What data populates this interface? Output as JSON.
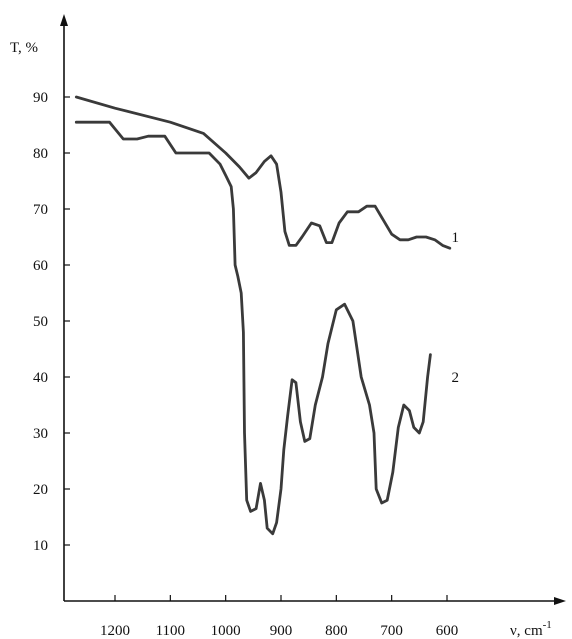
{
  "chart_data": {
    "type": "line",
    "title": "",
    "ylabel": "T, %",
    "xlabel_main": "ν, cm",
    "xlabel_sup": "-1",
    "x_reversed": true,
    "xlim": [
      1270,
      570
    ],
    "ylim": [
      0,
      100
    ],
    "grid": false,
    "x_ticks": [
      1200,
      1100,
      1000,
      900,
      800,
      700,
      600
    ],
    "y_ticks": [
      10,
      20,
      30,
      40,
      50,
      60,
      70,
      80,
      90
    ],
    "series": [
      {
        "name": "1",
        "label_at": [
          610,
          65
        ],
        "points": [
          [
            1270,
            90
          ],
          [
            1200,
            88
          ],
          [
            1100,
            85.5
          ],
          [
            1040,
            83.5
          ],
          [
            1000,
            80
          ],
          [
            975,
            77.5
          ],
          [
            958,
            75.5
          ],
          [
            945,
            76.5
          ],
          [
            930,
            78.5
          ],
          [
            918,
            79.5
          ],
          [
            908,
            78
          ],
          [
            900,
            73
          ],
          [
            893,
            66
          ],
          [
            885,
            63.5
          ],
          [
            873,
            63.5
          ],
          [
            862,
            65
          ],
          [
            845,
            67.5
          ],
          [
            830,
            67
          ],
          [
            818,
            64
          ],
          [
            808,
            64
          ],
          [
            795,
            67.5
          ],
          [
            780,
            69.5
          ],
          [
            760,
            69.5
          ],
          [
            745,
            70.5
          ],
          [
            730,
            70.5
          ],
          [
            715,
            68
          ],
          [
            700,
            65.5
          ],
          [
            685,
            64.5
          ],
          [
            670,
            64.5
          ],
          [
            655,
            65
          ],
          [
            638,
            65
          ],
          [
            622,
            64.5
          ],
          [
            608,
            63.5
          ],
          [
            595,
            63
          ]
        ]
      },
      {
        "name": "2",
        "label_at": [
          610,
          40
        ],
        "points": [
          [
            1270,
            85.5
          ],
          [
            1210,
            85.5
          ],
          [
            1185,
            82.5
          ],
          [
            1160,
            82.5
          ],
          [
            1140,
            83
          ],
          [
            1110,
            83
          ],
          [
            1090,
            80
          ],
          [
            1030,
            80
          ],
          [
            1010,
            78
          ],
          [
            1000,
            76
          ],
          [
            990,
            74
          ],
          [
            986,
            70
          ],
          [
            983,
            60
          ],
          [
            978,
            58
          ],
          [
            972,
            55
          ],
          [
            968,
            48
          ],
          [
            966,
            30
          ],
          [
            962,
            18
          ],
          [
            955,
            16
          ],
          [
            945,
            16.5
          ],
          [
            937,
            21
          ],
          [
            930,
            18
          ],
          [
            925,
            13
          ],
          [
            915,
            12
          ],
          [
            908,
            14
          ],
          [
            900,
            20
          ],
          [
            895,
            27
          ],
          [
            888,
            33
          ],
          [
            880,
            39.5
          ],
          [
            873,
            39
          ],
          [
            865,
            32
          ],
          [
            857,
            28.5
          ],
          [
            848,
            29
          ],
          [
            838,
            35
          ],
          [
            825,
            40
          ],
          [
            815,
            46
          ],
          [
            800,
            52
          ],
          [
            785,
            53
          ],
          [
            770,
            50
          ],
          [
            755,
            40
          ],
          [
            740,
            35
          ],
          [
            732,
            30
          ],
          [
            728,
            20
          ],
          [
            718,
            17.5
          ],
          [
            708,
            18
          ],
          [
            698,
            23
          ],
          [
            688,
            31
          ],
          [
            678,
            35
          ],
          [
            668,
            34
          ],
          [
            660,
            31
          ],
          [
            650,
            30
          ],
          [
            643,
            32
          ],
          [
            635,
            40
          ],
          [
            630,
            44
          ]
        ]
      }
    ]
  }
}
